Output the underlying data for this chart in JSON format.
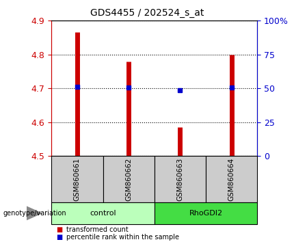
{
  "title": "GDS4455 / 202524_s_at",
  "samples": [
    "GSM860661",
    "GSM860662",
    "GSM860663",
    "GSM860664"
  ],
  "bar_tops": [
    4.865,
    4.78,
    4.585,
    4.8
  ],
  "bar_base": 4.5,
  "blue_dots": [
    4.705,
    4.703,
    4.695,
    4.703
  ],
  "ylim": [
    4.5,
    4.9
  ],
  "yticks_left": [
    4.5,
    4.6,
    4.7,
    4.8,
    4.9
  ],
  "yticks_right": [
    0,
    25,
    50,
    75,
    100
  ],
  "left_color": "#cc0000",
  "right_color": "#0000cc",
  "blue_dot_color": "#0000cc",
  "bar_color": "#cc0000",
  "groups": [
    {
      "label": "control",
      "samples": [
        0,
        1
      ],
      "color": "#bbffbb"
    },
    {
      "label": "RhoGDI2",
      "samples": [
        2,
        3
      ],
      "color": "#44dd44"
    }
  ],
  "genotype_label": "genotype/variation",
  "legend_red": "transformed count",
  "legend_blue": "percentile rank within the sample",
  "sample_box_color": "#cccccc",
  "bar_linewidth": 5
}
